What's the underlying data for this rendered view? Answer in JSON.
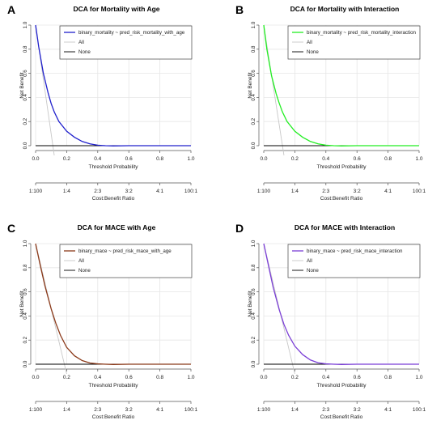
{
  "chart_data": [
    {
      "type": "line",
      "panel_label": "A",
      "title": "DCA for Mortality with Age",
      "xlabel": "Threshold Probability",
      "ylabel": "Net Benefit",
      "x2label": "Cost:Benefit Ratio",
      "xlim": [
        0,
        1
      ],
      "ylim": [
        0,
        1
      ],
      "xticks": [
        "0.0",
        "0.2",
        "0.4",
        "0.6",
        "0.8",
        "1.0"
      ],
      "yticks": [
        "0.0",
        "0.2",
        "0.4",
        "0.6",
        "0.8",
        "1.0"
      ],
      "x2ticks": [
        "1:100",
        "1:4",
        "2:3",
        "3:2",
        "4:1",
        "100:1"
      ],
      "grid": true,
      "legend_position": "top-right",
      "series": [
        {
          "name": "binary_mortality ~ pred_risk_mortality_with_age",
          "color": "#2020cc",
          "x": [
            0,
            0.02,
            0.05,
            0.08,
            0.1,
            0.12,
            0.15,
            0.2,
            0.25,
            0.3,
            0.35,
            0.4,
            0.45,
            0.5,
            0.6,
            0.7,
            0.8,
            0.9,
            1.0
          ],
          "y": [
            1.0,
            0.82,
            0.6,
            0.44,
            0.35,
            0.28,
            0.2,
            0.12,
            0.07,
            0.035,
            0.015,
            0.004,
            0,
            -0.002,
            0,
            0,
            0,
            0,
            0
          ]
        },
        {
          "name": "All",
          "color": "#c8c8c8",
          "x": [
            0,
            0.12
          ],
          "y": [
            1.0,
            -0.08
          ]
        },
        {
          "name": "None",
          "color": "#000000",
          "x": [
            0,
            1
          ],
          "y": [
            0,
            0
          ]
        }
      ]
    },
    {
      "type": "line",
      "panel_label": "B",
      "title": "DCA for Mortality with Interaction",
      "xlabel": "Threshold Probability",
      "ylabel": "Net Benefit",
      "x2label": "Cost:Benefit Ratio",
      "xlim": [
        0,
        1
      ],
      "ylim": [
        0,
        1
      ],
      "xticks": [
        "0.0",
        "0.2",
        "0.4",
        "0.6",
        "0.8",
        "1.0"
      ],
      "yticks": [
        "0.0",
        "0.2",
        "0.4",
        "0.6",
        "0.8",
        "1.0"
      ],
      "x2ticks": [
        "1:100",
        "1:4",
        "2:3",
        "3:2",
        "4:1",
        "100:1"
      ],
      "grid": true,
      "legend_position": "top-right",
      "series": [
        {
          "name": "binary_mortality ~ pred_risk_mortality_interaction",
          "color": "#22ee22",
          "x": [
            0,
            0.02,
            0.05,
            0.08,
            0.1,
            0.12,
            0.15,
            0.2,
            0.25,
            0.3,
            0.35,
            0.4,
            0.45,
            0.5,
            0.6,
            0.7,
            0.8,
            0.9,
            1.0
          ],
          "y": [
            1.0,
            0.8,
            0.58,
            0.43,
            0.35,
            0.28,
            0.2,
            0.12,
            0.07,
            0.035,
            0.015,
            0.004,
            0,
            -0.002,
            0,
            0,
            0,
            0,
            0
          ]
        },
        {
          "name": "All",
          "color": "#c8c8c8",
          "x": [
            0,
            0.13
          ],
          "y": [
            1.0,
            -0.08
          ]
        },
        {
          "name": "None",
          "color": "#000000",
          "x": [
            0,
            1
          ],
          "y": [
            0,
            0
          ]
        }
      ]
    },
    {
      "type": "line",
      "panel_label": "C",
      "title": "DCA for MACE with Age",
      "xlabel": "Threshold Probability",
      "ylabel": "Net Benefit",
      "x2label": "Cost:Benefit Ratio",
      "xlim": [
        0,
        1
      ],
      "ylim": [
        0,
        1
      ],
      "xticks": [
        "0.0",
        "0.2",
        "0.4",
        "0.6",
        "0.8",
        "1.0"
      ],
      "yticks": [
        "0.0",
        "0.2",
        "0.4",
        "0.6",
        "0.8",
        "1.0"
      ],
      "x2ticks": [
        "1:100",
        "1:4",
        "2:3",
        "3:2",
        "4:1",
        "100:1"
      ],
      "grid": true,
      "legend_position": "top-right",
      "series": [
        {
          "name": "binary_mace ~ pred_risk_mace_with_age",
          "color": "#8b3a1a",
          "x": [
            0,
            0.03,
            0.06,
            0.1,
            0.13,
            0.16,
            0.2,
            0.25,
            0.3,
            0.35,
            0.4,
            0.45,
            0.5,
            0.6,
            0.7,
            0.8,
            0.9,
            1.0
          ],
          "y": [
            1.0,
            0.82,
            0.65,
            0.46,
            0.34,
            0.24,
            0.14,
            0.07,
            0.03,
            0.01,
            0.003,
            0,
            -0.002,
            0,
            0,
            0,
            0,
            0
          ]
        },
        {
          "name": "All",
          "color": "#c8c8c8",
          "x": [
            0,
            0.2
          ],
          "y": [
            1.0,
            -0.08
          ]
        },
        {
          "name": "None",
          "color": "#000000",
          "x": [
            0,
            1
          ],
          "y": [
            0,
            0
          ]
        }
      ]
    },
    {
      "type": "line",
      "panel_label": "D",
      "title": "DCA for MACE with Interaction",
      "xlabel": "Threshold Probability",
      "ylabel": "Net Benefit",
      "x2label": "Cost:Benefit Ratio",
      "xlim": [
        0,
        1
      ],
      "ylim": [
        0,
        1
      ],
      "xticks": [
        "0.0",
        "0.2",
        "0.4",
        "0.6",
        "0.8",
        "1.0"
      ],
      "yticks": [
        "0.0",
        "0.2",
        "0.4",
        "0.6",
        "0.8",
        "1.0"
      ],
      "x2ticks": [
        "1:100",
        "1:4",
        "2:3",
        "3:2",
        "4:1",
        "100:1"
      ],
      "grid": true,
      "legend_position": "top-right",
      "series": [
        {
          "name": "binary_mace ~ pred_risk_mace_interaction",
          "color": "#7b3fd6",
          "x": [
            0,
            0.03,
            0.06,
            0.1,
            0.13,
            0.16,
            0.2,
            0.25,
            0.3,
            0.35,
            0.4,
            0.45,
            0.5,
            0.6,
            0.7,
            0.8,
            0.9,
            1.0
          ],
          "y": [
            1.0,
            0.82,
            0.64,
            0.45,
            0.33,
            0.24,
            0.15,
            0.08,
            0.035,
            0.012,
            0.003,
            0,
            -0.002,
            0,
            0,
            0,
            0,
            0
          ]
        },
        {
          "name": "All",
          "color": "#c8c8c8",
          "x": [
            0,
            0.2
          ],
          "y": [
            1.0,
            -0.08
          ]
        },
        {
          "name": "None",
          "color": "#000000",
          "x": [
            0,
            1
          ],
          "y": [
            0,
            0
          ]
        }
      ]
    }
  ]
}
